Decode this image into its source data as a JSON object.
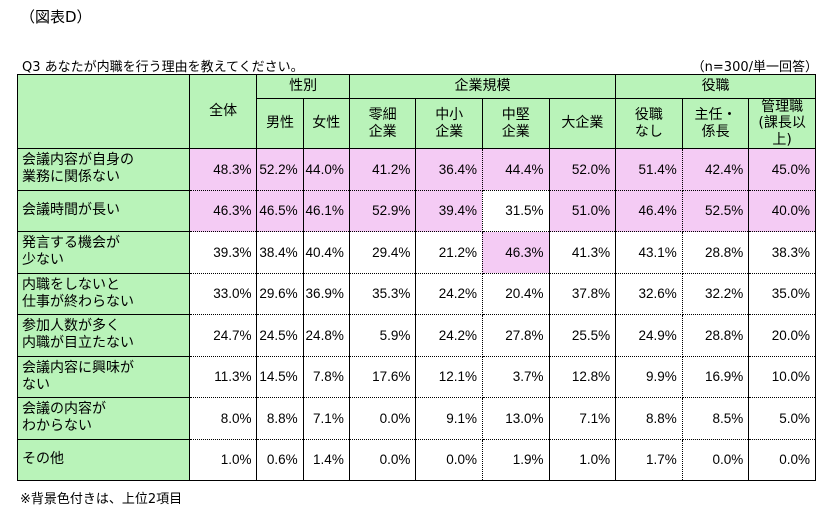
{
  "figure_title": "（図表D）",
  "question": "Q3 あなたが内職を行う理由を教えてください。",
  "sample_note": "（n=300/単一回答）",
  "footnote": "※背景色付きは、上位2項目",
  "colors": {
    "header_bg": "#b9f3b9",
    "highlight_bg": "#f4cbf4"
  },
  "header": {
    "total": "全体",
    "groups": [
      "性別",
      "企業規模",
      "役職"
    ],
    "columns": [
      [
        "男性"
      ],
      [
        "女性"
      ],
      [
        "零細",
        "企業"
      ],
      [
        "中小",
        "企業"
      ],
      [
        "中堅",
        "企業"
      ],
      [
        "大企業"
      ],
      [
        "役職",
        "なし"
      ],
      [
        "主任・",
        "係長"
      ],
      [
        "管理職",
        "(課長以上)"
      ]
    ]
  },
  "rows": [
    {
      "label": [
        "会議内容が自身の",
        "業務に関係ない"
      ],
      "values": [
        "48.3%",
        "52.2%",
        "44.0%",
        "41.2%",
        "36.4%",
        "44.4%",
        "52.0%",
        "51.4%",
        "42.4%",
        "45.0%"
      ],
      "highlight": [
        true,
        true,
        true,
        true,
        true,
        true,
        true,
        true,
        true,
        true
      ]
    },
    {
      "label": [
        "会議時間が長い"
      ],
      "values": [
        "46.3%",
        "46.5%",
        "46.1%",
        "52.9%",
        "39.4%",
        "31.5%",
        "51.0%",
        "46.4%",
        "52.5%",
        "40.0%"
      ],
      "highlight": [
        true,
        true,
        true,
        true,
        true,
        false,
        true,
        true,
        true,
        true
      ]
    },
    {
      "label": [
        "発言する機会が",
        "少ない"
      ],
      "values": [
        "39.3%",
        "38.4%",
        "40.4%",
        "29.4%",
        "21.2%",
        "46.3%",
        "41.3%",
        "43.1%",
        "28.8%",
        "38.3%"
      ],
      "highlight": [
        false,
        false,
        false,
        false,
        false,
        true,
        false,
        false,
        false,
        false
      ]
    },
    {
      "label": [
        "内職をしないと",
        "仕事が終わらない"
      ],
      "values": [
        "33.0%",
        "29.6%",
        "36.9%",
        "35.3%",
        "24.2%",
        "20.4%",
        "37.8%",
        "32.6%",
        "32.2%",
        "35.0%"
      ],
      "highlight": [
        false,
        false,
        false,
        false,
        false,
        false,
        false,
        false,
        false,
        false
      ]
    },
    {
      "label": [
        "参加人数が多く",
        "内職が目立たない"
      ],
      "values": [
        "24.7%",
        "24.5%",
        "24.8%",
        "5.9%",
        "24.2%",
        "27.8%",
        "25.5%",
        "24.9%",
        "28.8%",
        "20.0%"
      ],
      "highlight": [
        false,
        false,
        false,
        false,
        false,
        false,
        false,
        false,
        false,
        false
      ]
    },
    {
      "label": [
        "会議内容に興味が",
        "ない"
      ],
      "values": [
        "11.3%",
        "14.5%",
        "7.8%",
        "17.6%",
        "12.1%",
        "3.7%",
        "12.8%",
        "9.9%",
        "16.9%",
        "10.0%"
      ],
      "highlight": [
        false,
        false,
        false,
        false,
        false,
        false,
        false,
        false,
        false,
        false
      ]
    },
    {
      "label": [
        "会議の内容が",
        "わからない"
      ],
      "values": [
        "8.0%",
        "8.8%",
        "7.1%",
        "0.0%",
        "9.1%",
        "13.0%",
        "7.1%",
        "8.8%",
        "8.5%",
        "5.0%"
      ],
      "highlight": [
        false,
        false,
        false,
        false,
        false,
        false,
        false,
        false,
        false,
        false
      ]
    },
    {
      "label": [
        "その他"
      ],
      "values": [
        "1.0%",
        "0.6%",
        "1.4%",
        "0.0%",
        "0.0%",
        "1.9%",
        "1.0%",
        "1.7%",
        "0.0%",
        "0.0%"
      ],
      "highlight": [
        false,
        false,
        false,
        false,
        false,
        false,
        false,
        false,
        false,
        false
      ]
    }
  ]
}
